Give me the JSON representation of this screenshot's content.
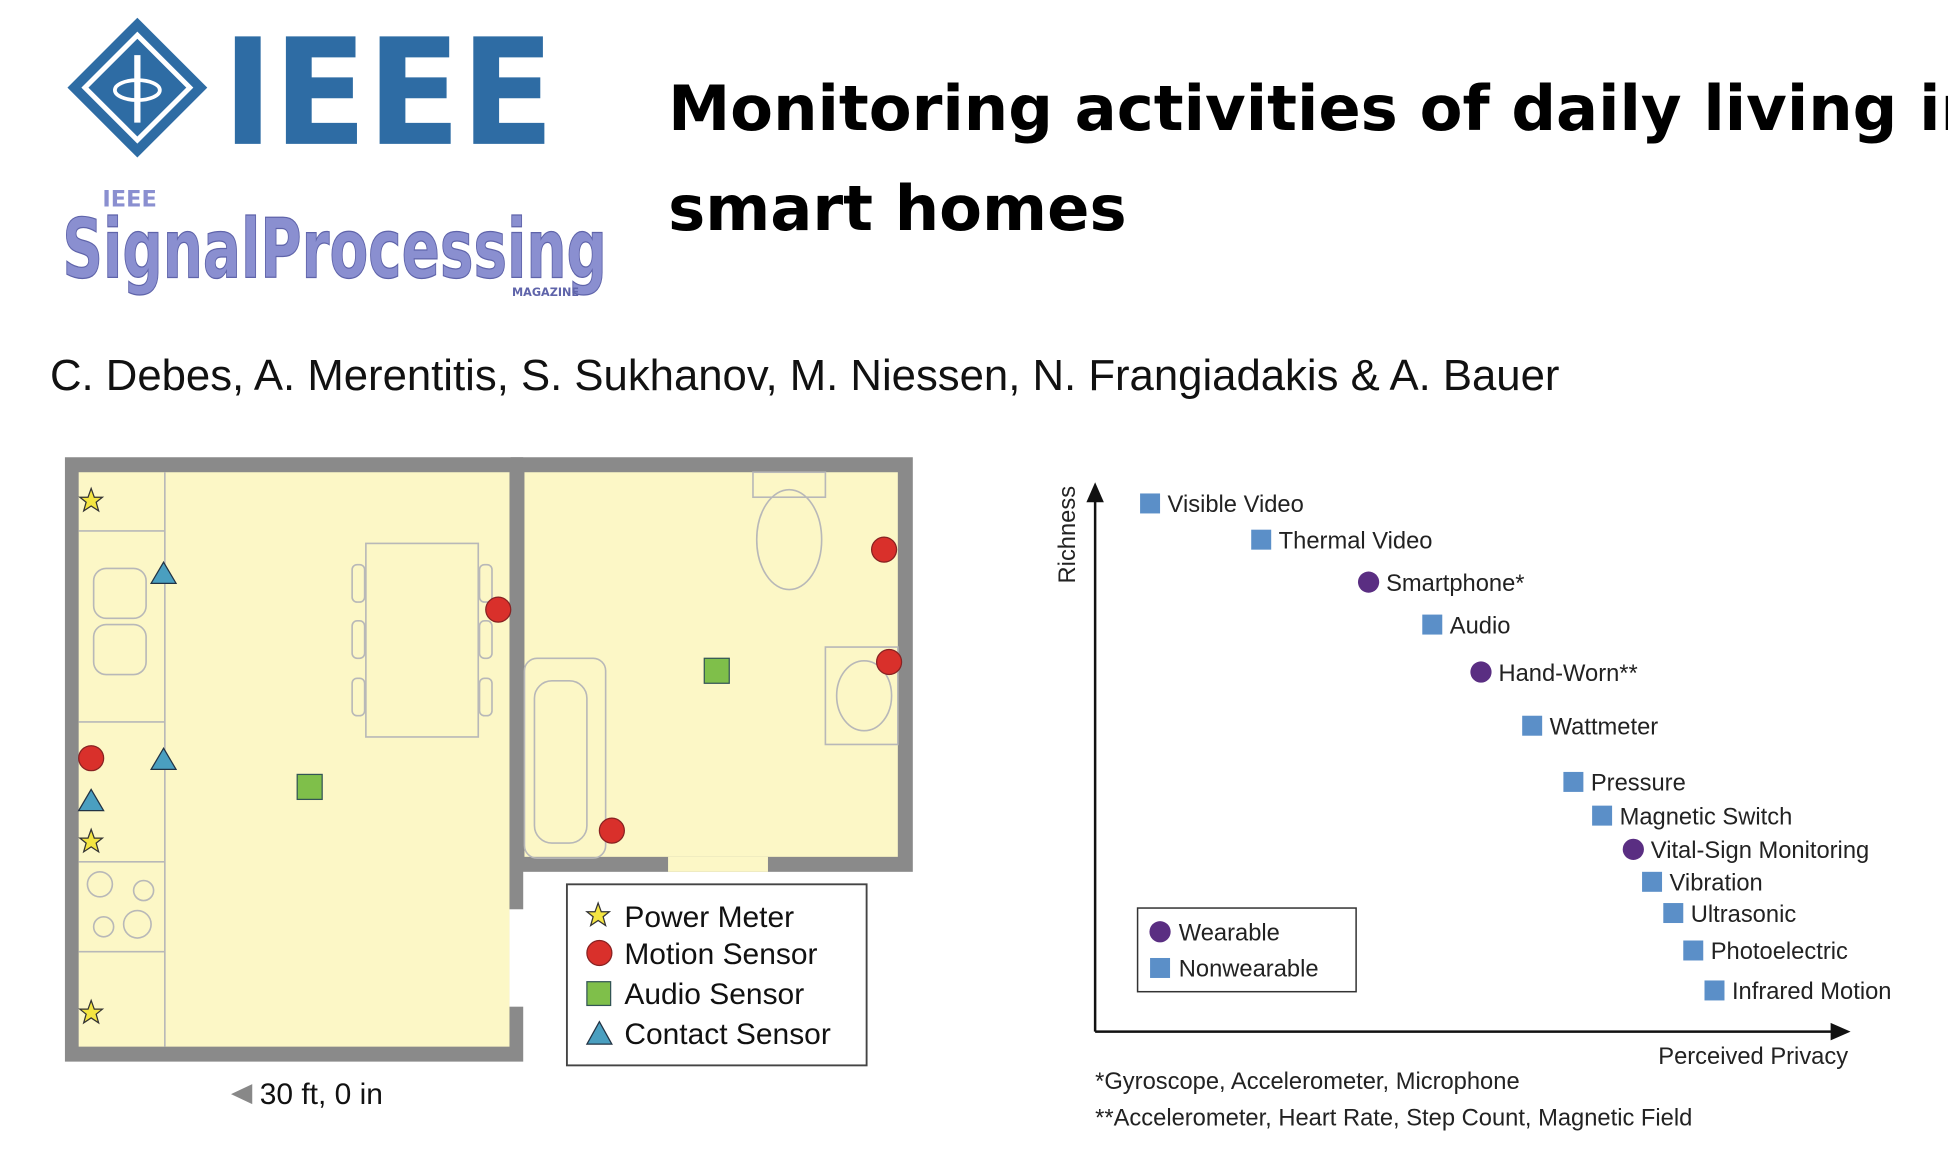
{
  "logo": {
    "brand": "IEEE",
    "publication_prefix": "IEEE",
    "publication": "SignalProcessing",
    "publication_suffix": "MAGAZINE"
  },
  "header": {
    "title_line_1": "Monitoring activities of daily living in",
    "title_line_2": "smart homes",
    "authors": "C. Debes, A. Merentitis, S. Sukhanov, M. Niessen, N. Frangiadakis & A. Bauer"
  },
  "floor_plan": {
    "scale_label": "30 ft, 0 in",
    "legend": [
      "Power Meter",
      "Motion Sensor",
      "Audio Sensor",
      "Contact Sensor"
    ]
  },
  "privacy_chart": {
    "y_label": "Richness",
    "x_label": "Perceived Privacy",
    "legend": [
      {
        "label": "Wearable",
        "marker": "circle",
        "color": "#5a2e82"
      },
      {
        "label": "Nonwearable",
        "marker": "square",
        "color": "#5b8fc8"
      }
    ],
    "items": [
      {
        "label": "Visible Video",
        "marker": "square"
      },
      {
        "label": "Thermal Video",
        "marker": "square"
      },
      {
        "label": "Smartphone*",
        "marker": "circle"
      },
      {
        "label": "Audio",
        "marker": "square"
      },
      {
        "label": "Hand-Worn**",
        "marker": "circle"
      },
      {
        "label": "Wattmeter",
        "marker": "square"
      },
      {
        "label": "Pressure",
        "marker": "square"
      },
      {
        "label": "Magnetic Switch",
        "marker": "square"
      },
      {
        "label": "Vital-Sign Monitoring",
        "marker": "circle"
      },
      {
        "label": "Vibration",
        "marker": "square"
      },
      {
        "label": "Ultrasonic",
        "marker": "square"
      },
      {
        "label": "Photoelectric",
        "marker": "square"
      },
      {
        "label": "Infrared Motion",
        "marker": "square"
      }
    ],
    "footnotes": [
      "*Gyroscope, Accelerometer, Microphone",
      "**Accelerometer, Heart Rate, Step Count, Magnetic Field"
    ]
  }
}
